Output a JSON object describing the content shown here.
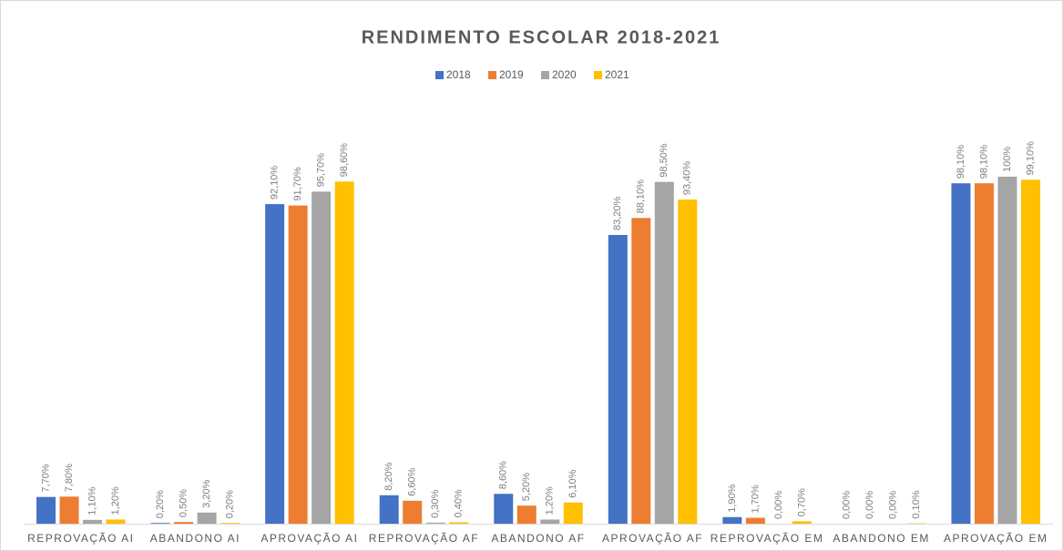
{
  "chart_data": {
    "type": "bar",
    "title": "RENDIMENTO ESCOLAR 2018-2021",
    "categories": [
      "REPROVAÇÃO AI",
      "ABANDONO AI",
      "APROVAÇÃO AI",
      "REPROVAÇÃO AF",
      "ABANDONO AF",
      "APROVAÇÃO AF",
      "REPROVAÇÃO EM",
      "ABANDONO EM",
      "APROVAÇÃO EM"
    ],
    "series": [
      {
        "name": "2018",
        "color": "#4472c4",
        "values": [
          7.7,
          0.2,
          92.1,
          8.2,
          8.6,
          83.2,
          1.9,
          0,
          98.1
        ],
        "value_labels": [
          "7,70%",
          "0,20%",
          "92,10%",
          "8,20%",
          "8,60%",
          "83,20%",
          "1,90%",
          "0,00%",
          "98,10%"
        ]
      },
      {
        "name": "2019",
        "color": "#ed7d31",
        "values": [
          7.8,
          0.5,
          91.7,
          6.6,
          5.2,
          88.1,
          1.7,
          0,
          98.1
        ],
        "value_labels": [
          "7,80%",
          "0,50%",
          "91,70%",
          "6,60%",
          "5,20%",
          "88,10%",
          "1,70%",
          "0,00%",
          "98,10%"
        ]
      },
      {
        "name": "2020",
        "color": "#a5a5a5",
        "values": [
          1.1,
          3.2,
          95.7,
          0.3,
          1.2,
          98.5,
          0,
          0,
          100
        ],
        "value_labels": [
          "1,10%",
          "3,20%",
          "95,70%",
          "0,30%",
          "1,20%",
          "98,50%",
          "0,00%",
          "0,00%",
          "100%"
        ]
      },
      {
        "name": "2021",
        "color": "#ffc000",
        "values": [
          1.2,
          0.2,
          98.6,
          0.4,
          6.1,
          93.4,
          0.7,
          0.1,
          99.1
        ],
        "value_labels": [
          "1,20%",
          "0,20%",
          "98,60%",
          "0,40%",
          "6,10%",
          "93,40%",
          "0,70%",
          "0,10%",
          "99,10%"
        ]
      }
    ],
    "ylim": [
      0,
      100
    ],
    "legend": "top"
  }
}
